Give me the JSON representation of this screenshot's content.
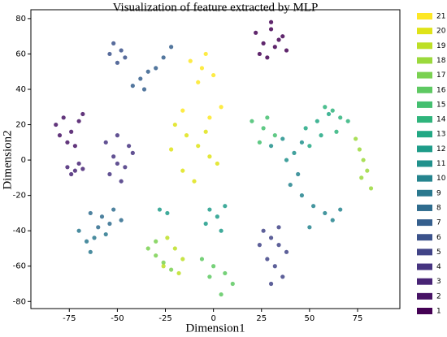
{
  "chart_data": {
    "type": "scatter",
    "title": "Visualization of feature extracted by MLP",
    "x_label": "Dimension1",
    "y_label": "Dimension2",
    "xlim": [
      -95,
      97
    ],
    "ylim": [
      -84,
      85
    ],
    "xticks": [
      -75,
      -50,
      -25,
      0,
      25,
      50,
      75
    ],
    "yticks": [
      -80,
      -60,
      -40,
      -20,
      0,
      20,
      40,
      60,
      80
    ],
    "series": [
      {
        "name": "1",
        "color": "#440154",
        "x": [
          22,
          26,
          30,
          34,
          38,
          28,
          32,
          24,
          36,
          30
        ],
        "values": [
          72,
          66,
          74,
          68,
          62,
          58,
          64,
          60,
          70,
          78
        ]
      },
      {
        "name": "2",
        "color": "#471365",
        "x": [
          -82,
          -78,
          -74,
          -70,
          -76,
          -80,
          -72,
          -68
        ],
        "values": [
          20,
          24,
          16,
          22,
          10,
          14,
          8,
          26
        ]
      },
      {
        "name": "3",
        "color": "#482475",
        "x": [
          -76,
          -72,
          -70,
          -74,
          -68
        ],
        "values": [
          -4,
          -6,
          -2,
          -8,
          -5
        ]
      },
      {
        "name": "4",
        "color": "#463480",
        "x": [
          -56,
          -50,
          -44,
          -52,
          -46,
          -54,
          -48,
          -42,
          -50
        ],
        "values": [
          10,
          14,
          8,
          2,
          -4,
          -8,
          -12,
          4,
          -2
        ]
      },
      {
        "name": "5",
        "color": "#414487",
        "x": [
          26,
          30,
          34,
          38,
          28,
          32,
          36,
          24,
          30,
          34
        ],
        "values": [
          -40,
          -44,
          -48,
          -52,
          -56,
          -60,
          -66,
          -48,
          -70,
          -38
        ]
      },
      {
        "name": "6",
        "color": "#3b528b",
        "x": [
          -52,
          -48,
          -46,
          -50,
          -54
        ],
        "values": [
          66,
          62,
          58,
          55,
          60
        ]
      },
      {
        "name": "7",
        "color": "#355f8d",
        "x": [
          -42,
          -38,
          -34,
          -30,
          -26,
          -36,
          -22
        ],
        "values": [
          42,
          46,
          50,
          52,
          58,
          40,
          64
        ]
      },
      {
        "name": "8",
        "color": "#2f6c8e",
        "x": [
          -64,
          -58,
          -52,
          -60,
          -54,
          -48
        ],
        "values": [
          -30,
          -32,
          -28,
          -38,
          -36,
          -34
        ]
      },
      {
        "name": "9",
        "color": "#2a788e",
        "x": [
          -70,
          -66,
          -62,
          -56,
          -64
        ],
        "values": [
          -40,
          -46,
          -44,
          -42,
          -52
        ]
      },
      {
        "name": "10",
        "color": "#25848e",
        "x": [
          40,
          46,
          52,
          58,
          62,
          44,
          50,
          66
        ],
        "values": [
          -14,
          -20,
          -26,
          -30,
          -34,
          -8,
          -38,
          -28
        ]
      },
      {
        "name": "11",
        "color": "#21918c",
        "x": [
          30,
          36,
          42,
          46,
          38
        ],
        "values": [
          8,
          12,
          4,
          10,
          0
        ]
      },
      {
        "name": "12",
        "color": "#1e9c89",
        "x": [
          -2,
          2,
          6,
          -4,
          4,
          -28,
          -24
        ],
        "values": [
          -28,
          -32,
          -26,
          -36,
          -40,
          -28,
          -30
        ]
      },
      {
        "name": "13",
        "color": "#22a884",
        "x": [
          48,
          54,
          60,
          56,
          50
        ],
        "values": [
          18,
          22,
          26,
          14,
          8
        ]
      },
      {
        "name": "14",
        "color": "#2fb47c",
        "x": [
          62,
          66,
          70,
          58,
          64
        ],
        "values": [
          28,
          24,
          22,
          30,
          16
        ]
      },
      {
        "name": "15",
        "color": "#44bf70",
        "x": [
          20,
          26,
          32,
          24,
          28
        ],
        "values": [
          22,
          18,
          14,
          10,
          24
        ]
      },
      {
        "name": "16",
        "color": "#5ec962",
        "x": [
          -6,
          0,
          6,
          10,
          4,
          -2
        ],
        "values": [
          -56,
          -60,
          -64,
          -70,
          -76,
          -66
        ]
      },
      {
        "name": "17",
        "color": "#7ad151",
        "x": [
          -34,
          -30,
          -26,
          -22,
          -30
        ],
        "values": [
          -50,
          -54,
          -58,
          -62,
          -46
        ]
      },
      {
        "name": "18",
        "color": "#9bd93c",
        "x": [
          74,
          76,
          78,
          80,
          77,
          82
        ],
        "values": [
          12,
          6,
          0,
          -6,
          -10,
          -16
        ]
      },
      {
        "name": "19",
        "color": "#bddf26",
        "x": [
          -24,
          -20,
          -16,
          -26,
          -18
        ],
        "values": [
          -44,
          -50,
          -56,
          -60,
          -64
        ]
      },
      {
        "name": "20",
        "color": "#dfe318",
        "x": [
          -20,
          -14,
          -8,
          -2,
          -16,
          -10,
          -4,
          2,
          -22
        ],
        "values": [
          20,
          14,
          8,
          2,
          -6,
          -12,
          16,
          -2,
          6
        ]
      },
      {
        "name": "21",
        "color": "#fde725",
        "x": [
          -12,
          -6,
          0,
          -8,
          -4,
          -2,
          4,
          -16
        ],
        "values": [
          56,
          52,
          48,
          44,
          60,
          24,
          30,
          28
        ]
      }
    ]
  }
}
